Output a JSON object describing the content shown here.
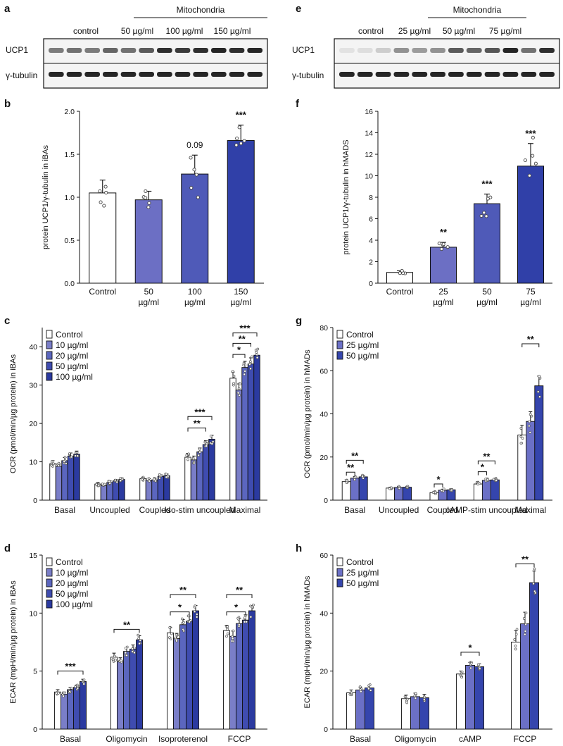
{
  "colors": {
    "ramp4": [
      "#ffffff",
      "#6c6fc4",
      "#4f5ab8",
      "#3040a8"
    ],
    "ramp5": [
      "#ffffff",
      "#7a7ec8",
      "#5b66bf",
      "#3f4cb0",
      "#2b3aa0"
    ],
    "ramp3": [
      "#ffffff",
      "#6b70c6",
      "#3545ad"
    ],
    "axis": "#111111",
    "blot_band": "#1a1a1a"
  },
  "panels": {
    "a": {
      "letter": "a",
      "header": "Mitochondria",
      "lanes": [
        "control",
        "50 µg/ml",
        "100 µg/ml",
        "150 µg/ml"
      ],
      "rows": [
        "UCP1",
        "γ-tubulin"
      ]
    },
    "e": {
      "letter": "e",
      "header": "Mitochondria",
      "lanes": [
        "control",
        "25 µg/ml",
        "50 µg/ml",
        "75 µg/ml"
      ],
      "rows": [
        "UCP1",
        "γ-tubulin"
      ]
    }
  },
  "chart_data": [
    {
      "id": "b",
      "letter": "b",
      "type": "bar",
      "ylabel": "protein UCP1/γ-tubulin in iBAs",
      "ylim": [
        0,
        2.0
      ],
      "yticks": [
        "0.0",
        "0.5",
        "1.0",
        "1.5",
        "2.0"
      ],
      "ytick_vals": [
        0,
        0.5,
        1.0,
        1.5,
        2.0
      ],
      "categories": [
        "Control",
        "50 µg/ml",
        "100 µg/ml",
        "150 µg/ml"
      ],
      "values": [
        1.05,
        0.97,
        1.27,
        1.66
      ],
      "errors": [
        0.15,
        0.1,
        0.22,
        0.18
      ],
      "annotations": [
        "",
        "",
        "0.09",
        "***"
      ]
    },
    {
      "id": "f",
      "letter": "f",
      "type": "bar",
      "ylabel": "protein UCP1/γ-tubulin in hMADS",
      "ylim": [
        0,
        16
      ],
      "yticks": [
        "0",
        "2",
        "4",
        "6",
        "8",
        "10",
        "12",
        "14",
        "16"
      ],
      "ytick_vals": [
        0,
        2,
        4,
        6,
        8,
        10,
        12,
        14,
        16
      ],
      "categories": [
        "Control",
        "25 µg/ml",
        "50 µg/ml",
        "75 µg/ml"
      ],
      "values": [
        1.0,
        3.35,
        7.4,
        10.9
      ],
      "errors": [
        0.15,
        0.45,
        0.9,
        2.1
      ],
      "annotations": [
        "",
        "**",
        "***",
        "***"
      ]
    },
    {
      "id": "c",
      "letter": "c",
      "type": "bar",
      "ylabel": "OCR (pmol/min/µg protein) in iBAs",
      "ylim": [
        0,
        45
      ],
      "yticks": [
        "0",
        "10",
        "20",
        "30",
        "40"
      ],
      "ytick_vals": [
        0,
        10,
        20,
        30,
        40
      ],
      "groups": [
        "Basal",
        "Uncoupled",
        "Coupled",
        "Iso-stim uncoupled",
        "Maximal"
      ],
      "legend": [
        "Control",
        "10 µg/ml",
        "20 µg/ml",
        "50 µg/ml",
        "100 µg/ml"
      ],
      "series": [
        {
          "name": "Control",
          "values": [
            9.5,
            4.2,
            5.6,
            11.2,
            31.8
          ]
        },
        {
          "name": "10 µg/ml",
          "values": [
            8.8,
            3.8,
            5.2,
            10.5,
            28.7
          ]
        },
        {
          "name": "20 µg/ml",
          "values": [
            10.3,
            4.6,
            5.3,
            12.6,
            34.6
          ]
        },
        {
          "name": "50 µg/ml",
          "values": [
            11.5,
            5.0,
            6.2,
            14.5,
            35.5
          ]
        },
        {
          "name": "100 µg/ml",
          "values": [
            12.0,
            5.4,
            6.4,
            15.9,
            37.8
          ]
        }
      ],
      "errors": [
        0.8,
        0.4,
        0.4,
        1.0,
        1.6
      ],
      "brackets": [
        {
          "group": 3,
          "from": 0,
          "to": 3,
          "label": "**",
          "y": 18.8
        },
        {
          "group": 3,
          "from": 0,
          "to": 4,
          "label": "***",
          "y": 21.8
        },
        {
          "group": 4,
          "from": 0,
          "to": 2,
          "label": "*",
          "y": 38.0
        },
        {
          "group": 4,
          "from": 0,
          "to": 3,
          "label": "**",
          "y": 40.9
        },
        {
          "group": 4,
          "from": 0,
          "to": 4,
          "label": "***",
          "y": 43.6
        }
      ]
    },
    {
      "id": "g",
      "letter": "g",
      "type": "bar",
      "ylabel": "OCR (pmol/min/µg protein) in hMADs",
      "ylim": [
        0,
        80
      ],
      "yticks": [
        "0",
        "20",
        "40",
        "60",
        "80"
      ],
      "ytick_vals": [
        0,
        20,
        40,
        60,
        80
      ],
      "groups": [
        "Basal",
        "Uncoupled",
        "Coupled",
        "cAMP-stim uncoupled",
        "Maximal"
      ],
      "legend": [
        "Control",
        "25 µg/ml",
        "50 µg/ml"
      ],
      "series": [
        {
          "name": "Control",
          "values": [
            8.6,
            5.6,
            3.5,
            7.5,
            30.2
          ]
        },
        {
          "name": "25 µg/ml",
          "values": [
            10.2,
            5.9,
            4.6,
            9.2,
            36.5
          ]
        },
        {
          "name": "50 µg/ml",
          "values": [
            10.8,
            6.0,
            4.8,
            9.4,
            53.0
          ]
        }
      ],
      "errors": [
        0.8,
        0.4,
        0.5,
        0.7,
        4.5
      ],
      "brackets": [
        {
          "group": 0,
          "from": 0,
          "to": 1,
          "label": "**",
          "y": 13.0
        },
        {
          "group": 0,
          "from": 0,
          "to": 2,
          "label": "**",
          "y": 18.5
        },
        {
          "group": 2,
          "from": 0,
          "to": 1,
          "label": "*",
          "y": 7.5
        },
        {
          "group": 3,
          "from": 0,
          "to": 1,
          "label": "*",
          "y": 13.2
        },
        {
          "group": 3,
          "from": 0,
          "to": 2,
          "label": "**",
          "y": 18.2
        },
        {
          "group": 4,
          "from": 0,
          "to": 2,
          "label": "**",
          "y": 72.5
        }
      ]
    },
    {
      "id": "d",
      "letter": "d",
      "type": "bar",
      "ylabel": "ECAR (mpH/min/µg protein) in iBAs",
      "ylim": [
        0,
        15
      ],
      "yticks": [
        "0",
        "5",
        "10",
        "15"
      ],
      "ytick_vals": [
        0,
        5,
        10,
        15
      ],
      "groups": [
        "Basal",
        "Oligomycin",
        "Isoproterenol",
        "FCCP"
      ],
      "legend": [
        "Control",
        "10 µg/ml",
        "20 µg/ml",
        "50 µg/ml",
        "100 µg/ml"
      ],
      "series": [
        {
          "name": "Control",
          "values": [
            3.2,
            6.2,
            8.3,
            8.5
          ]
        },
        {
          "name": "10 µg/ml",
          "values": [
            3.0,
            5.8,
            7.8,
            8.0
          ]
        },
        {
          "name": "20 µg/ml",
          "values": [
            3.4,
            6.7,
            9.0,
            9.1
          ]
        },
        {
          "name": "50 µg/ml",
          "values": [
            3.6,
            6.9,
            9.3,
            9.4
          ]
        },
        {
          "name": "100 µg/ml",
          "values": [
            4.1,
            7.7,
            10.2,
            10.2
          ]
        }
      ],
      "errors": [
        0.2,
        0.35,
        0.45,
        0.45
      ],
      "brackets": [
        {
          "group": 0,
          "from": 0,
          "to": 4,
          "label": "***",
          "y": 5.0
        },
        {
          "group": 1,
          "from": 0,
          "to": 4,
          "label": "**",
          "y": 8.6
        },
        {
          "group": 2,
          "from": 0,
          "to": 3,
          "label": "*",
          "y": 10.1
        },
        {
          "group": 2,
          "from": 0,
          "to": 4,
          "label": "**",
          "y": 11.6
        },
        {
          "group": 3,
          "from": 0,
          "to": 3,
          "label": "*",
          "y": 10.1
        },
        {
          "group": 3,
          "from": 0,
          "to": 4,
          "label": "**",
          "y": 11.6
        }
      ]
    },
    {
      "id": "h",
      "letter": "h",
      "type": "bar",
      "ylabel": "ECAR (mpH/min/µg protein) in hMADs",
      "ylim": [
        0,
        60
      ],
      "yticks": [
        "0",
        "20",
        "40",
        "60"
      ],
      "ytick_vals": [
        0,
        20,
        40,
        60
      ],
      "groups": [
        "Basal",
        "Oligomycin",
        "cAMP",
        "FCCP"
      ],
      "legend": [
        "Control",
        "25 µg/ml",
        "50 µg/ml"
      ],
      "series": [
        {
          "name": "Control",
          "values": [
            12.5,
            10.5,
            19.0,
            30.0
          ]
        },
        {
          "name": "25 µg/ml",
          "values": [
            13.5,
            11.2,
            22.0,
            36.3
          ]
        },
        {
          "name": "50 µg/ml",
          "values": [
            14.2,
            10.8,
            21.5,
            50.5
          ]
        }
      ],
      "errors": [
        1.0,
        1.2,
        1.0,
        4.0
      ],
      "brackets": [
        {
          "group": 2,
          "from": 0,
          "to": 2,
          "label": "*",
          "y": 26.5
        },
        {
          "group": 3,
          "from": 0,
          "to": 2,
          "label": "**",
          "y": 57.0
        }
      ]
    }
  ]
}
